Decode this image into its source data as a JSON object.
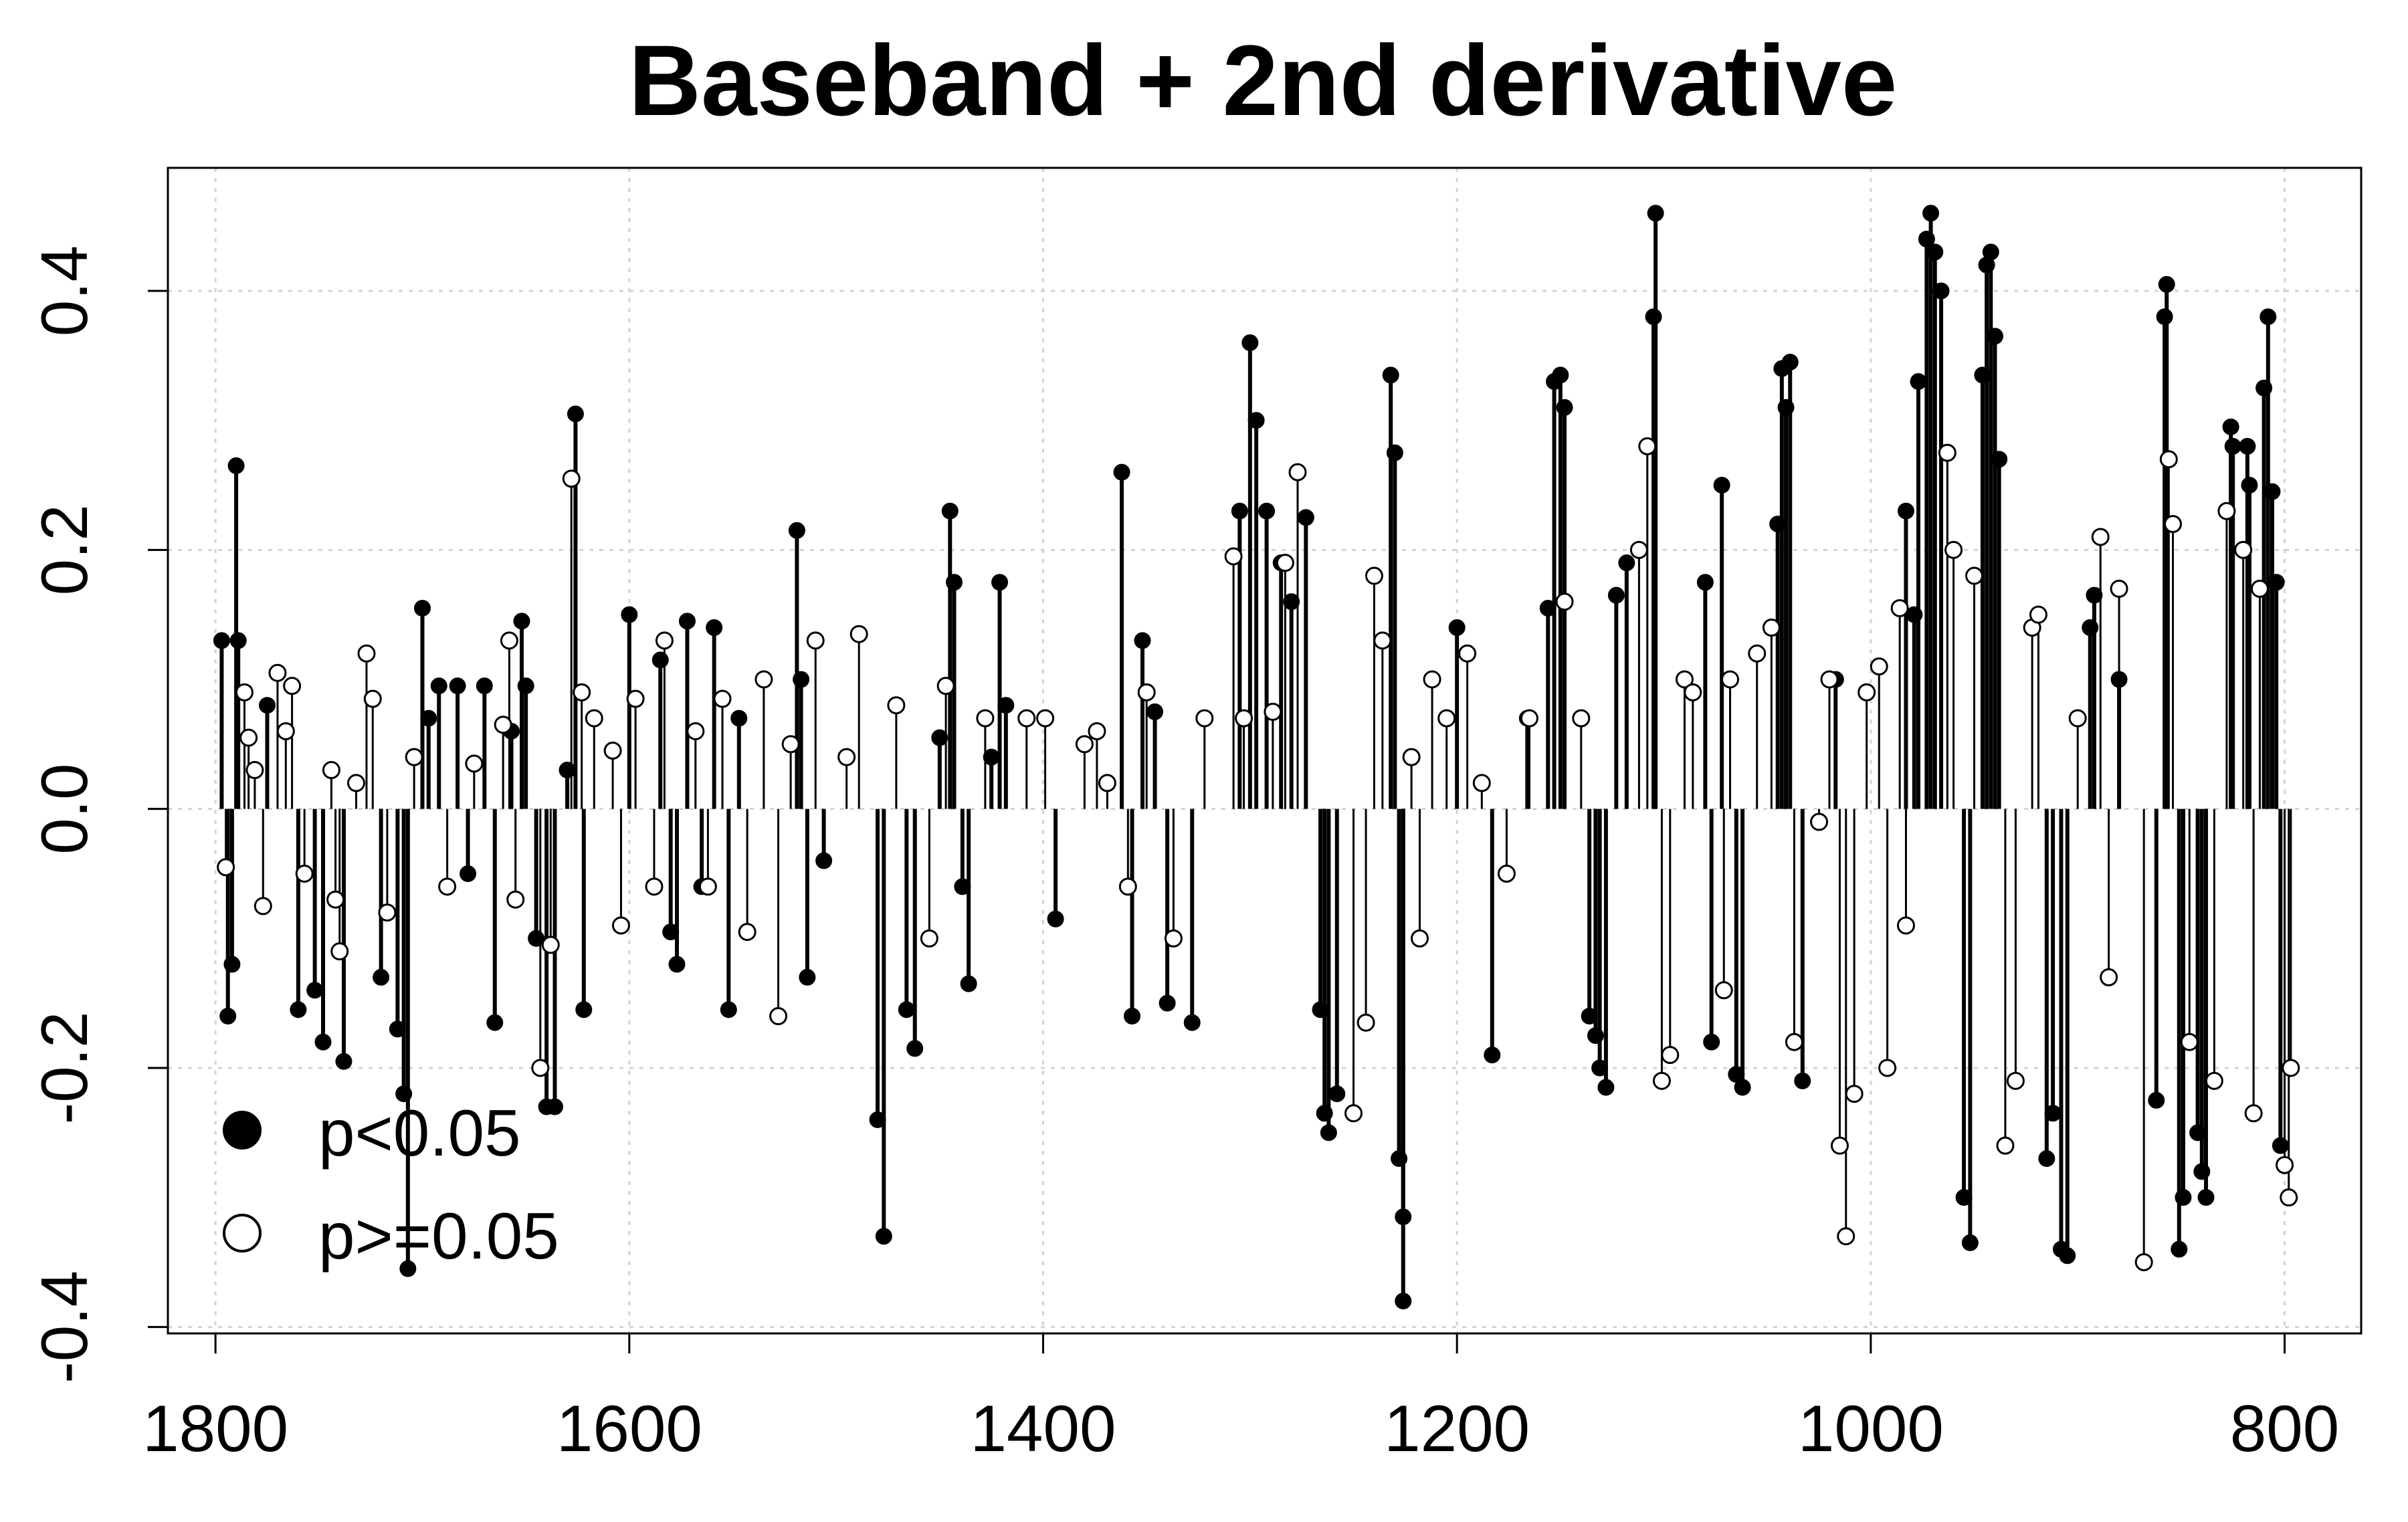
{
  "chart_data": {
    "type": "scatter",
    "style": "vertical lines (type='h') from y=0 with point markers",
    "title": "Baseband + 2nd derivative",
    "xlabel": "",
    "ylabel": "",
    "xlim": [
      1823,
      763
    ],
    "ylim": [
      -0.405,
      0.495
    ],
    "x_reversed": true,
    "grid": true,
    "x_ticks": [
      1800,
      1600,
      1400,
      1200,
      1000,
      800
    ],
    "y_ticks": [
      -0.4,
      -0.2,
      0.0,
      0.2,
      0.4
    ],
    "x_tick_labels": [
      "1800",
      "1600",
      "1400",
      "1200",
      "1000",
      "800"
    ],
    "y_tick_labels": [
      "-0.4",
      "-0.2",
      "0.0",
      "0.2",
      "0.4"
    ],
    "legend": {
      "position": "bottom-left",
      "entries": [
        {
          "label": "p<0.05",
          "marker": "filled-circle"
        },
        {
          "label": "p>=0.05",
          "marker": "open-circle"
        }
      ]
    },
    "colors": {
      "points": "#000000",
      "grid": "#d3d3d3",
      "background": "#ffffff"
    },
    "series": [
      {
        "name": "p<0.05",
        "marker": "filled",
        "points": [
          [
            1797,
            0.13
          ],
          [
            1794,
            -0.16
          ],
          [
            1792,
            -0.12
          ],
          [
            1790,
            0.265
          ],
          [
            1789,
            0.13
          ],
          [
            1775,
            0.08
          ],
          [
            1760,
            -0.155
          ],
          [
            1752,
            -0.14
          ],
          [
            1748,
            -0.18
          ],
          [
            1738,
            -0.195
          ],
          [
            1720,
            -0.13
          ],
          [
            1712,
            -0.17
          ],
          [
            1709,
            -0.22
          ],
          [
            1707,
            -0.355
          ],
          [
            1700,
            0.155
          ],
          [
            1697,
            0.07
          ],
          [
            1692,
            0.095
          ],
          [
            1683,
            0.095
          ],
          [
            1678,
            -0.05
          ],
          [
            1670,
            0.095
          ],
          [
            1665,
            -0.165
          ],
          [
            1657,
            0.06
          ],
          [
            1652,
            0.145
          ],
          [
            1650,
            0.095
          ],
          [
            1645,
            -0.1
          ],
          [
            1640,
            -0.23
          ],
          [
            1636,
            -0.23
          ],
          [
            1630,
            0.03
          ],
          [
            1626,
            0.305
          ],
          [
            1622,
            -0.155
          ],
          [
            1600,
            0.15
          ],
          [
            1585,
            0.115
          ],
          [
            1580,
            -0.095
          ],
          [
            1577,
            -0.12
          ],
          [
            1572,
            0.145
          ],
          [
            1565,
            -0.06
          ],
          [
            1559,
            0.14
          ],
          [
            1552,
            -0.155
          ],
          [
            1547,
            0.07
          ],
          [
            1519,
            0.215
          ],
          [
            1517,
            0.1
          ],
          [
            1514,
            -0.13
          ],
          [
            1506,
            -0.04
          ],
          [
            1480,
            -0.24
          ],
          [
            1477,
            -0.33
          ],
          [
            1466,
            -0.155
          ],
          [
            1462,
            -0.185
          ],
          [
            1450,
            0.055
          ],
          [
            1445,
            0.23
          ],
          [
            1443,
            0.175
          ],
          [
            1439,
            -0.06
          ],
          [
            1436,
            -0.135
          ],
          [
            1425,
            0.04
          ],
          [
            1421,
            0.175
          ],
          [
            1418,
            0.08
          ],
          [
            1394,
            -0.085
          ],
          [
            1362,
            0.26
          ],
          [
            1357,
            -0.16
          ],
          [
            1352,
            0.13
          ],
          [
            1346,
            0.075
          ],
          [
            1340,
            -0.15
          ],
          [
            1328,
            -0.165
          ],
          [
            1305,
            0.23
          ],
          [
            1300,
            0.36
          ],
          [
            1297,
            0.3
          ],
          [
            1292,
            0.23
          ],
          [
            1285,
            0.19
          ],
          [
            1280,
            0.16
          ],
          [
            1273,
            0.225
          ],
          [
            1266,
            -0.155
          ],
          [
            1264,
            -0.235
          ],
          [
            1262,
            -0.25
          ],
          [
            1258,
            -0.22
          ],
          [
            1232,
            0.335
          ],
          [
            1230,
            0.275
          ],
          [
            1228,
            -0.27
          ],
          [
            1226,
            -0.315
          ],
          [
            1226,
            -0.38
          ],
          [
            1200,
            0.14
          ],
          [
            1183,
            -0.19
          ],
          [
            1166,
            0.07
          ],
          [
            1156,
            0.155
          ],
          [
            1153,
            0.33
          ],
          [
            1150,
            0.335
          ],
          [
            1148,
            0.31
          ],
          [
            1136,
            -0.16
          ],
          [
            1133,
            -0.175
          ],
          [
            1131,
            -0.2
          ],
          [
            1128,
            -0.215
          ],
          [
            1123,
            0.165
          ],
          [
            1118,
            0.19
          ],
          [
            1105,
            0.38
          ],
          [
            1104,
            0.46
          ],
          [
            1080,
            0.175
          ],
          [
            1077,
            -0.18
          ],
          [
            1072,
            0.25
          ],
          [
            1065,
            -0.205
          ],
          [
            1062,
            -0.215
          ],
          [
            1045,
            0.22
          ],
          [
            1043,
            0.34
          ],
          [
            1041,
            0.31
          ],
          [
            1039,
            0.345
          ],
          [
            1033,
            -0.21
          ],
          [
            1017,
            0.1
          ],
          [
            983,
            0.23
          ],
          [
            979,
            0.15
          ],
          [
            977,
            0.33
          ],
          [
            973,
            0.44
          ],
          [
            971,
            0.46
          ],
          [
            969,
            0.43
          ],
          [
            966,
            0.4
          ],
          [
            955,
            -0.3
          ],
          [
            952,
            -0.335
          ],
          [
            946,
            0.335
          ],
          [
            944,
            0.42
          ],
          [
            942,
            0.43
          ],
          [
            940,
            0.365
          ],
          [
            938,
            0.27
          ],
          [
            915,
            -0.27
          ],
          [
            912,
            -0.235
          ],
          [
            908,
            -0.34
          ],
          [
            905,
            -0.345
          ],
          [
            894,
            0.14
          ],
          [
            892,
            0.165
          ],
          [
            880,
            0.1
          ],
          [
            862,
            -0.225
          ],
          [
            858,
            0.38
          ],
          [
            857,
            0.405
          ],
          [
            851,
            -0.34
          ],
          [
            849,
            -0.3
          ],
          [
            842,
            -0.25
          ],
          [
            840,
            -0.28
          ],
          [
            838,
            -0.3
          ],
          [
            826,
            0.295
          ],
          [
            825,
            0.28
          ],
          [
            818,
            0.28
          ],
          [
            817,
            0.25
          ],
          [
            810,
            0.325
          ],
          [
            808,
            0.38
          ],
          [
            806,
            0.245
          ],
          [
            804,
            0.175
          ],
          [
            802,
            -0.26
          ]
        ]
      },
      {
        "name": "p>=0.05",
        "marker": "open",
        "points": [
          [
            1795,
            -0.045
          ],
          [
            1786,
            0.09
          ],
          [
            1784,
            0.055
          ],
          [
            1781,
            0.03
          ],
          [
            1777,
            -0.075
          ],
          [
            1770,
            0.105
          ],
          [
            1766,
            0.06
          ],
          [
            1763,
            0.095
          ],
          [
            1757,
            -0.05
          ],
          [
            1744,
            0.03
          ],
          [
            1742,
            -0.07
          ],
          [
            1740,
            -0.11
          ],
          [
            1732,
            0.02
          ],
          [
            1727,
            0.12
          ],
          [
            1724,
            0.085
          ],
          [
            1717,
            -0.08
          ],
          [
            1704,
            0.04
          ],
          [
            1688,
            -0.06
          ],
          [
            1675,
            0.035
          ],
          [
            1661,
            0.065
          ],
          [
            1658,
            0.13
          ],
          [
            1655,
            -0.07
          ],
          [
            1643,
            -0.2
          ],
          [
            1638,
            -0.105
          ],
          [
            1628,
            0.255
          ],
          [
            1623,
            0.09
          ],
          [
            1617,
            0.07
          ],
          [
            1608,
            0.045
          ],
          [
            1604,
            -0.09
          ],
          [
            1597,
            0.085
          ],
          [
            1588,
            -0.06
          ],
          [
            1583,
            0.13
          ],
          [
            1568,
            0.06
          ],
          [
            1562,
            -0.06
          ],
          [
            1555,
            0.085
          ],
          [
            1543,
            -0.095
          ],
          [
            1535,
            0.1
          ],
          [
            1528,
            -0.16
          ],
          [
            1522,
            0.05
          ],
          [
            1510,
            0.13
          ],
          [
            1495,
            0.04
          ],
          [
            1489,
            0.135
          ],
          [
            1471,
            0.08
          ],
          [
            1455,
            -0.1
          ],
          [
            1447,
            0.095
          ],
          [
            1428,
            0.07
          ],
          [
            1408,
            0.07
          ],
          [
            1399,
            0.07
          ],
          [
            1380,
            0.05
          ],
          [
            1374,
            0.06
          ],
          [
            1369,
            0.02
          ],
          [
            1359,
            -0.06
          ],
          [
            1350,
            0.09
          ],
          [
            1337,
            -0.1
          ],
          [
            1322,
            0.07
          ],
          [
            1308,
            0.195
          ],
          [
            1303,
            0.07
          ],
          [
            1289,
            0.075
          ],
          [
            1283,
            0.19
          ],
          [
            1277,
            0.26
          ],
          [
            1250,
            -0.235
          ],
          [
            1244,
            -0.165
          ],
          [
            1240,
            0.18
          ],
          [
            1236,
            0.13
          ],
          [
            1222,
            0.04
          ],
          [
            1218,
            -0.1
          ],
          [
            1212,
            0.1
          ],
          [
            1205,
            0.07
          ],
          [
            1195,
            0.12
          ],
          [
            1188,
            0.02
          ],
          [
            1176,
            -0.05
          ],
          [
            1165,
            0.07
          ],
          [
            1148,
            0.16
          ],
          [
            1140,
            0.07
          ],
          [
            1112,
            0.2
          ],
          [
            1108,
            0.28
          ],
          [
            1101,
            -0.21
          ],
          [
            1097,
            -0.19
          ],
          [
            1090,
            0.1
          ],
          [
            1086,
            0.09
          ],
          [
            1071,
            -0.14
          ],
          [
            1068,
            0.1
          ],
          [
            1055,
            0.12
          ],
          [
            1048,
            0.14
          ],
          [
            1037,
            -0.18
          ],
          [
            1025,
            -0.01
          ],
          [
            1020,
            0.1
          ],
          [
            1015,
            -0.26
          ],
          [
            1012,
            -0.33
          ],
          [
            1008,
            -0.22
          ],
          [
            1002,
            0.09
          ],
          [
            996,
            0.11
          ],
          [
            992,
            -0.2
          ],
          [
            986,
            0.155
          ],
          [
            983,
            -0.09
          ],
          [
            963,
            0.275
          ],
          [
            960,
            0.2
          ],
          [
            950,
            0.18
          ],
          [
            935,
            -0.26
          ],
          [
            930,
            -0.21
          ],
          [
            922,
            0.14
          ],
          [
            919,
            0.15
          ],
          [
            900,
            0.07
          ],
          [
            889,
            0.21
          ],
          [
            885,
            -0.13
          ],
          [
            880,
            0.17
          ],
          [
            868,
            -0.35
          ],
          [
            856,
            0.27
          ],
          [
            854,
            0.22
          ],
          [
            846,
            -0.18
          ],
          [
            834,
            -0.21
          ],
          [
            828,
            0.23
          ],
          [
            820,
            0.2
          ],
          [
            815,
            -0.235
          ],
          [
            812,
            0.17
          ],
          [
            800,
            -0.275
          ],
          [
            798,
            -0.3
          ],
          [
            797,
            -0.2
          ]
        ]
      }
    ]
  }
}
